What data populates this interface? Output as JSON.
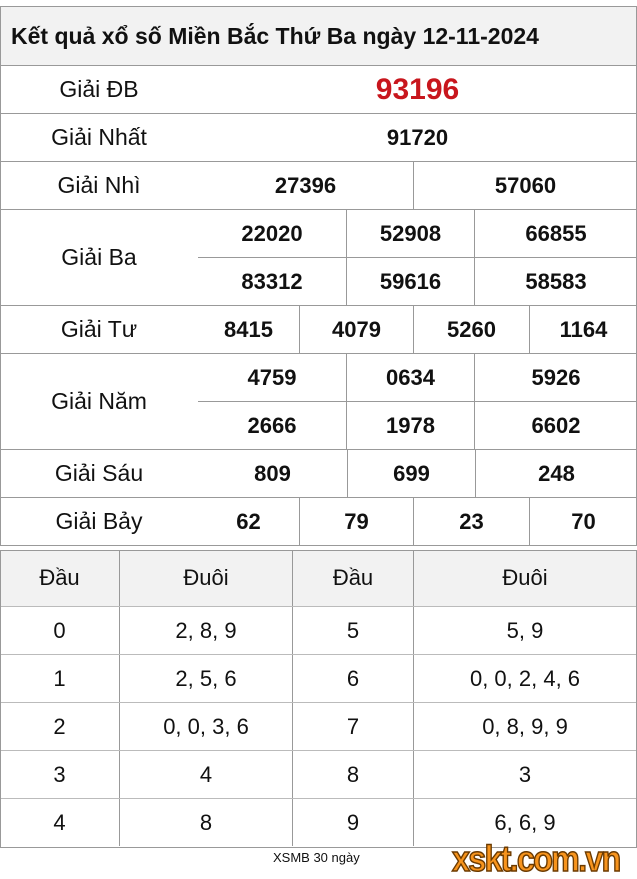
{
  "title": "Kết quả xổ số Miền Bắc Thứ Ba ngày 12-11-2024",
  "colors": {
    "special": "#c8161d",
    "logo": "#f7941d",
    "header_bg": "#f2f2f2"
  },
  "prizes": {
    "db": {
      "label": "Giải ĐB",
      "values": [
        "93196"
      ]
    },
    "nhat": {
      "label": "Giải Nhất",
      "values": [
        "91720"
      ]
    },
    "nhi": {
      "label": "Giải Nhì",
      "values": [
        "27396",
        "57060"
      ]
    },
    "ba": {
      "label": "Giải Ba",
      "values": [
        "22020",
        "52908",
        "66855",
        "83312",
        "59616",
        "58583"
      ]
    },
    "tu": {
      "label": "Giải Tư",
      "values": [
        "8415",
        "4079",
        "5260",
        "1164"
      ]
    },
    "nam": {
      "label": "Giải Năm",
      "values": [
        "4759",
        "0634",
        "5926",
        "2666",
        "1978",
        "6602"
      ]
    },
    "sau": {
      "label": "Giải Sáu",
      "values": [
        "809",
        "699",
        "248"
      ]
    },
    "bay": {
      "label": "Giải Bảy",
      "values": [
        "62",
        "79",
        "23",
        "70"
      ]
    }
  },
  "loto": {
    "headers": [
      "Đầu",
      "Đuôi",
      "Đầu",
      "Đuôi"
    ],
    "rows": [
      [
        "0",
        "2, 8, 9",
        "5",
        "5, 9"
      ],
      [
        "1",
        "2, 5, 6",
        "6",
        "0, 0, 2, 4, 6"
      ],
      [
        "2",
        "0, 0, 3, 6",
        "7",
        "0, 8, 9, 9"
      ],
      [
        "3",
        "4",
        "8",
        "3"
      ],
      [
        "4",
        "8",
        "9",
        "6, 6, 9"
      ]
    ]
  },
  "footer": {
    "link": "XSMB 30 ngày",
    "logo": "xskt.com.vn"
  }
}
